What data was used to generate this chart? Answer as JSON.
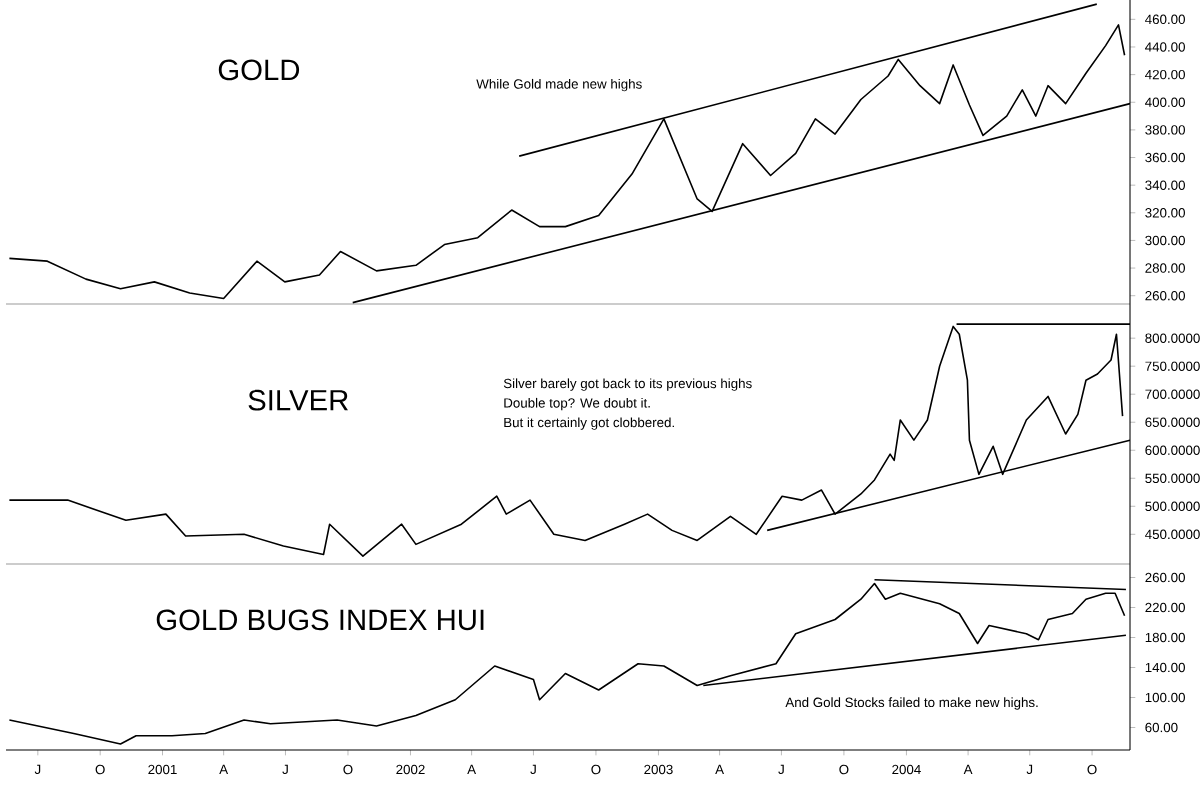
{
  "chart_data": [
    {
      "type": "line",
      "title": "GOLD",
      "annotations": [
        "While Gold made new highs"
      ],
      "tick_labels": "y",
      "xlim": [
        "2000-05-15",
        "2004-11-26"
      ],
      "ylim": [
        254,
        474
      ],
      "yticks": [
        {
          "value": 260,
          "label": "260.00"
        },
        {
          "value": 280,
          "label": "280.00"
        },
        {
          "value": 300,
          "label": "300.00"
        },
        {
          "value": 320,
          "label": "320.00"
        },
        {
          "value": 340,
          "label": "340.00"
        },
        {
          "value": 360,
          "label": "360.00"
        },
        {
          "value": 380,
          "label": "380.00"
        },
        {
          "value": 400,
          "label": "400.00"
        },
        {
          "value": 420,
          "label": "420.00"
        },
        {
          "value": 440,
          "label": "440.00"
        },
        {
          "value": 460,
          "label": "460.00"
        }
      ],
      "series": [
        {
          "color": "#000000",
          "x": [
            "2000-05-20",
            "2000-07-15",
            "2000-09-10",
            "2000-10-31",
            "2000-12-20",
            "2001-02-10",
            "2001-04-01",
            "2001-05-20",
            "2001-06-30",
            "2001-08-20",
            "2001-09-20",
            "2001-11-12",
            "2002-01-09",
            "2002-02-20",
            "2002-04-10",
            "2002-05-30",
            "2002-07-10",
            "2002-08-17",
            "2002-10-05",
            "2002-11-23",
            "2003-01-09",
            "2003-02-27",
            "2003-03-21",
            "2003-05-05",
            "2003-06-15",
            "2003-07-22",
            "2003-08-20",
            "2003-09-18",
            "2003-10-26",
            "2003-12-05",
            "2003-12-20",
            "2004-01-21",
            "2004-02-19",
            "2004-03-10",
            "2004-04-03",
            "2004-04-23",
            "2004-05-28",
            "2004-06-20",
            "2004-07-10",
            "2004-07-28",
            "2004-08-23",
            "2004-09-22",
            "2004-10-21",
            "2004-11-09",
            "2004-11-18"
          ],
          "values": [
            287,
            285,
            272,
            265,
            270,
            262,
            258,
            285,
            270,
            275,
            292,
            278,
            282,
            297,
            302,
            322,
            310,
            310,
            318,
            348,
            388,
            330,
            321,
            370,
            347,
            363,
            388,
            377,
            402,
            419,
            431,
            412,
            399,
            427,
            398,
            376,
            390,
            409,
            390,
            412,
            399,
            421,
            441,
            456,
            434
          ]
        },
        {
          "type": "line",
          "color": "#000000",
          "x": [
            "2002-06-10",
            "2004-10-08"
          ],
          "values": [
            361,
            471
          ]
        },
        {
          "type": "line",
          "color": "#000000",
          "x": [
            "2001-10-08",
            "2004-11-26"
          ],
          "values": [
            255,
            399
          ]
        }
      ]
    },
    {
      "type": "line",
      "title": "SILVER",
      "annotations": [
        "Silver barely got back to its previous highs",
        "Double top? We doubt it.",
        "But it certainly got clobbered."
      ],
      "tick_labels": "y",
      "xlim": [
        "2000-05-15",
        "2004-11-26"
      ],
      "ylim": [
        397,
        861
      ],
      "yticks": [
        {
          "value": 450,
          "label": "450.0000"
        },
        {
          "value": 500,
          "label": "500.0000"
        },
        {
          "value": 550,
          "label": "550.0000"
        },
        {
          "value": 600,
          "label": "600.0000"
        },
        {
          "value": 650,
          "label": "650.0000"
        },
        {
          "value": 700,
          "label": "700.0000"
        },
        {
          "value": 750,
          "label": "750.0000"
        },
        {
          "value": 800,
          "label": "800.0000"
        }
      ],
      "series": [
        {
          "color": "#000000",
          "x": [
            "2000-05-20",
            "2000-08-14",
            "2000-11-08",
            "2001-01-06",
            "2001-02-04",
            "2001-05-01",
            "2001-06-28",
            "2001-08-26",
            "2001-09-04",
            "2001-10-23",
            "2001-12-19",
            "2002-01-09",
            "2002-03-17",
            "2002-05-08",
            "2002-05-22",
            "2002-06-26",
            "2002-07-31",
            "2002-09-15",
            "2002-11-12",
            "2002-12-16",
            "2003-01-21",
            "2003-02-27",
            "2003-04-17",
            "2003-05-25",
            "2003-07-02",
            "2003-07-31",
            "2003-08-29",
            "2003-09-18",
            "2003-10-26",
            "2003-11-15",
            "2003-12-08",
            "2003-12-14",
            "2003-12-23",
            "2004-01-12",
            "2004-02-01",
            "2004-02-19",
            "2004-03-10",
            "2004-03-19",
            "2004-03-31",
            "2004-04-03",
            "2004-04-17",
            "2004-05-08",
            "2004-05-22",
            "2004-06-26",
            "2004-07-28",
            "2004-08-23",
            "2004-09-10",
            "2004-09-22",
            "2004-10-09",
            "2004-10-29",
            "2004-11-06",
            "2004-11-15"
          ],
          "values": [
            511,
            511,
            475,
            486,
            447,
            450,
            429,
            414,
            468,
            411,
            468,
            432,
            468,
            518,
            486,
            511,
            450,
            439,
            468,
            486,
            457,
            439,
            482,
            450,
            518,
            511,
            529,
            486,
            522,
            547,
            593,
            582,
            654,
            618,
            654,
            750,
            821,
            807,
            725,
            618,
            557,
            607,
            557,
            654,
            696,
            629,
            664,
            725,
            736,
            761,
            807,
            661
          ]
        },
        {
          "type": "line",
          "color": "#000000",
          "x": [
            "2004-03-15",
            "2004-11-26"
          ],
          "values": [
            825,
            825
          ]
        },
        {
          "type": "line",
          "color": "#000000",
          "x": [
            "2003-06-10",
            "2004-11-26"
          ],
          "values": [
            457,
            618
          ]
        }
      ]
    },
    {
      "type": "line",
      "title": "GOLD BUGS INDEX HUI",
      "annotations": [
        "And Gold Stocks failed to make new highs."
      ],
      "xlim": [
        "2000-05-15",
        "2004-11-26"
      ],
      "ylim": [
        30,
        278
      ],
      "xticks": [
        {
          "value": "2000-07-01",
          "label": "J"
        },
        {
          "value": "2000-10-01",
          "label": "O"
        },
        {
          "value": "2001-01-01",
          "label": "2001"
        },
        {
          "value": "2001-04-01",
          "label": "A"
        },
        {
          "value": "2001-07-01",
          "label": "J"
        },
        {
          "value": "2001-10-01",
          "label": "O"
        },
        {
          "value": "2002-01-01",
          "label": "2002"
        },
        {
          "value": "2002-04-01",
          "label": "A"
        },
        {
          "value": "2002-07-01",
          "label": "J"
        },
        {
          "value": "2002-10-01",
          "label": "O"
        },
        {
          "value": "2003-01-01",
          "label": "2003"
        },
        {
          "value": "2003-04-01",
          "label": "A"
        },
        {
          "value": "2003-07-01",
          "label": "J"
        },
        {
          "value": "2003-10-01",
          "label": "O"
        },
        {
          "value": "2004-01-01",
          "label": "2004"
        },
        {
          "value": "2004-04-01",
          "label": "A"
        },
        {
          "value": "2004-07-01",
          "label": "J"
        },
        {
          "value": "2004-10-01",
          "label": "O"
        }
      ],
      "yticks": [
        {
          "value": 60,
          "label": "60.00"
        },
        {
          "value": 100,
          "label": "100.00"
        },
        {
          "value": 140,
          "label": "140.00"
        },
        {
          "value": 180,
          "label": "180.00"
        },
        {
          "value": 220,
          "label": "220.00"
        },
        {
          "value": 260,
          "label": "260.00"
        }
      ],
      "series": [
        {
          "color": "#000000",
          "x": [
            "2000-05-20",
            "2000-08-23",
            "2000-10-31",
            "2000-11-23",
            "2001-01-15",
            "2001-03-05",
            "2001-05-01",
            "2001-06-09",
            "2001-09-15",
            "2001-11-12",
            "2002-01-09",
            "2002-03-08",
            "2002-05-05",
            "2002-07-01",
            "2002-07-10",
            "2002-08-17",
            "2002-10-05",
            "2002-12-02",
            "2003-01-09",
            "2003-02-27",
            "2003-04-17",
            "2003-06-23",
            "2003-07-22",
            "2003-09-18",
            "2003-10-26",
            "2003-11-15",
            "2003-12-01",
            "2003-12-23",
            "2004-02-19",
            "2004-03-19",
            "2004-04-15",
            "2004-05-02",
            "2004-06-26",
            "2004-07-14",
            "2004-07-28",
            "2004-09-02",
            "2004-09-22",
            "2004-10-21",
            "2004-11-04",
            "2004-11-18"
          ],
          "values": [
            70,
            52,
            38,
            49,
            49,
            52,
            70,
            65,
            70,
            62,
            76,
            97,
            142,
            124,
            97,
            132,
            110,
            145,
            142,
            116,
            129,
            145,
            185,
            204,
            231,
            252,
            231,
            239,
            225,
            212,
            172,
            196,
            185,
            177,
            204,
            212,
            231,
            239,
            239,
            209
          ]
        },
        {
          "type": "line",
          "color": "#000000",
          "x": [
            "2003-11-15",
            "2004-11-20"
          ],
          "values": [
            257,
            244
          ]
        },
        {
          "type": "line",
          "color": "#000000",
          "x": [
            "2003-03-08",
            "2004-11-20"
          ],
          "values": [
            116,
            183
          ]
        }
      ]
    }
  ]
}
